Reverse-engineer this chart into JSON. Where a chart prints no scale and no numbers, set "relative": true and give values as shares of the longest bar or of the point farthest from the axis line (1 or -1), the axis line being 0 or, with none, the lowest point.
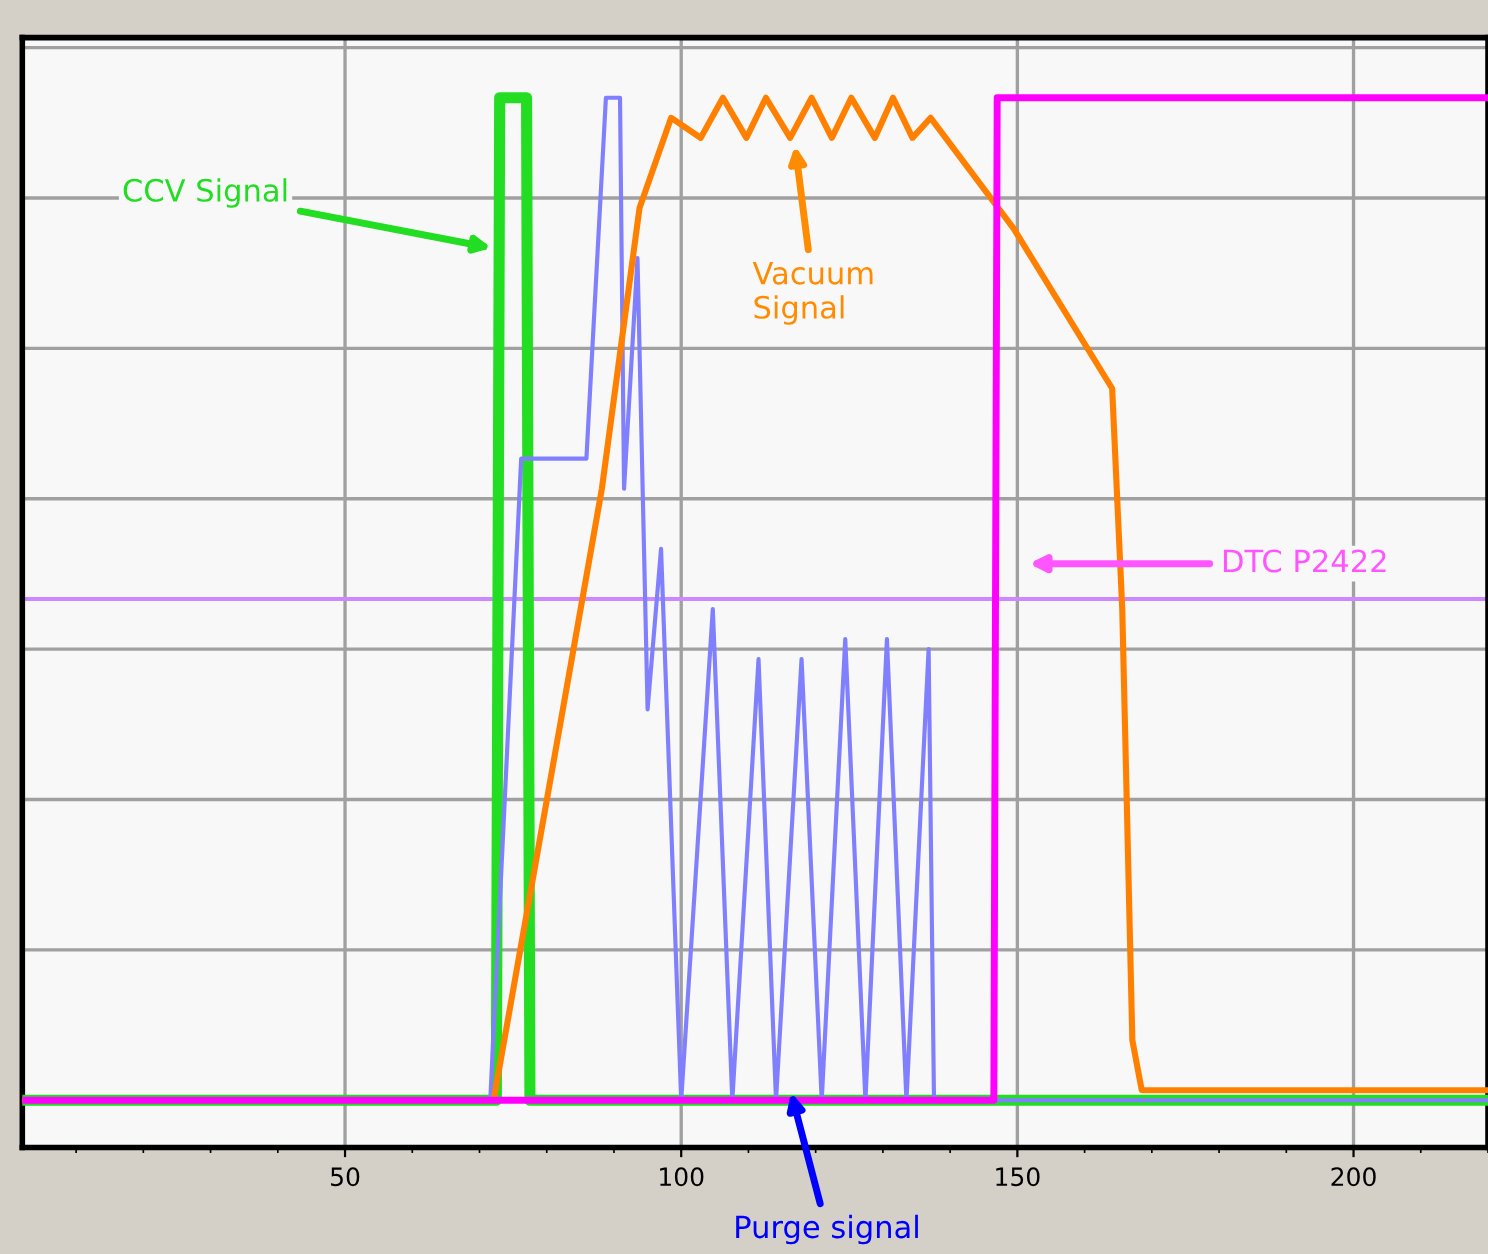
{
  "chart_data": {
    "type": "line",
    "relative": true,
    "xlim": [
      2,
      220
    ],
    "xticks": [
      50,
      100,
      150,
      200
    ],
    "grid": true,
    "tick_labels": "x",
    "marker": "none",
    "line_style": "solid",
    "series": [
      {
        "color": "#22dd22",
        "x": [
          2,
          72.5,
          73,
          77,
          77.5,
          220
        ],
        "values": [
          0,
          0,
          1,
          1,
          0,
          0
        ]
      },
      {
        "color": "#8080ff",
        "x": [
          2,
          71.6,
          76.2,
          85.9,
          88.8,
          90.9,
          91.5,
          93.5,
          95,
          97,
          100,
          104.7,
          107.6,
          111.5,
          114.1,
          117.9,
          120.9,
          124.4,
          127.4,
          130.6,
          133.5,
          136.8,
          137.6,
          220
        ],
        "values": [
          0,
          0,
          0.64,
          0.64,
          1,
          1,
          0.61,
          0.84,
          0.39,
          0.55,
          0,
          0.49,
          0,
          0.44,
          0,
          0.44,
          0,
          0.46,
          0,
          0.46,
          0,
          0.45,
          0,
          0
        ]
      },
      {
        "color": "#ff8000",
        "x": [
          2,
          72.1,
          82.4,
          88.2,
          93.8,
          98.5,
          102.9,
          106.2,
          109.7,
          112.6,
          116.2,
          119.4,
          122.4,
          125.3,
          128.8,
          131.5,
          134.4,
          137.1,
          149.4,
          164.1,
          165.6,
          167.1,
          168.5,
          220
        ],
        "values": [
          0,
          0,
          0.39,
          0.61,
          0.89,
          0.98,
          0.96,
          1,
          0.96,
          1,
          0.96,
          1,
          0.96,
          1,
          0.96,
          1,
          0.96,
          0.98,
          0.87,
          0.71,
          0.49,
          0.06,
          0.01,
          0.01
        ]
      },
      {
        "color": "#ff00ff",
        "x": [
          2,
          146.5,
          147,
          220
        ],
        "values": [
          0,
          0,
          1,
          1
        ]
      }
    ],
    "ref_lines": [
      {
        "axis": "y",
        "value": 0.5,
        "color": "#cc88ff"
      }
    ],
    "annotations": [
      "CCV Signal",
      "Purge signal",
      "Vacuum\nSignal",
      "DTC P2422"
    ]
  }
}
